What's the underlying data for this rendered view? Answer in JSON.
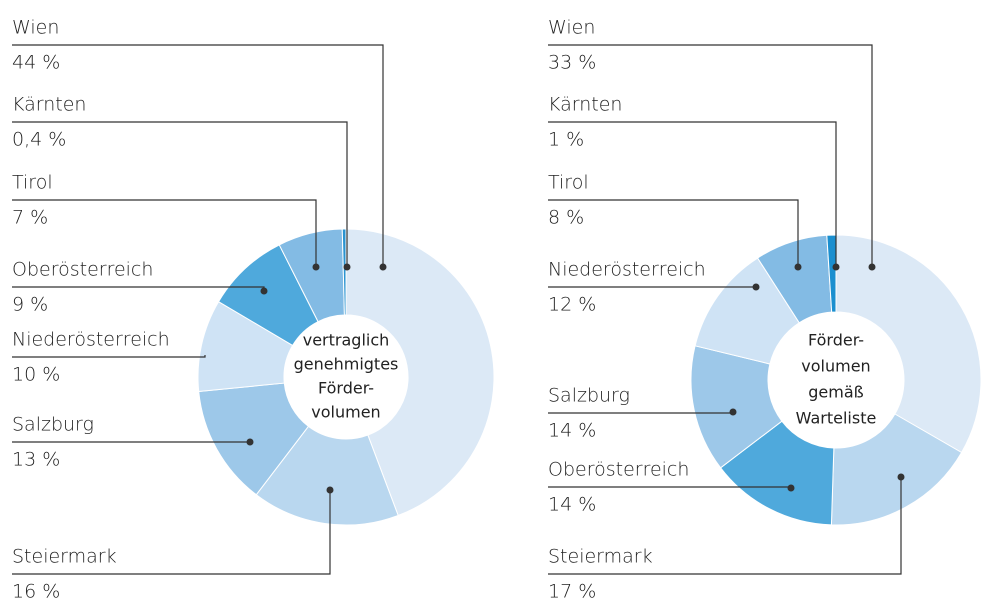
{
  "chart_data": [
    {
      "type": "donut",
      "title": [
        "vertraglich",
        "genehmigtes",
        "Förder-",
        "volumen"
      ],
      "categories": [
        "Wien",
        "Steiermark",
        "Salzburg",
        "Niederösterreich",
        "Oberösterreich",
        "Tirol",
        "Kärnten"
      ],
      "values": [
        44,
        16,
        13,
        10,
        9,
        7,
        0.4
      ],
      "value_labels": [
        "44 %",
        "16 %",
        "13 %",
        "10 %",
        "9 %",
        "7 %",
        "0,4 %"
      ],
      "colors": [
        "#dce9f6",
        "#b9d7ef",
        "#9dc8e9",
        "#cfe3f5",
        "#4fa9dc",
        "#83bbe4",
        "#2a93d0"
      ]
    },
    {
      "type": "donut",
      "title": [
        "Förder-",
        "volumen",
        "gemäß",
        "Warteliste"
      ],
      "categories": [
        "Wien",
        "Steiermark",
        "Oberösterreich",
        "Salzburg",
        "Niederösterreich",
        "Tirol",
        "Kärnten"
      ],
      "values": [
        33,
        17,
        14,
        14,
        12,
        8,
        1
      ],
      "value_labels": [
        "33 %",
        "17 %",
        "14 %",
        "14 %",
        "12 %",
        "8 %",
        "1 %"
      ],
      "colors": [
        "#dce9f6",
        "#b9d7ef",
        "#4fa9dc",
        "#9dc8e9",
        "#cfe3f5",
        "#83bbe4",
        "#1b8fcf"
      ]
    }
  ]
}
